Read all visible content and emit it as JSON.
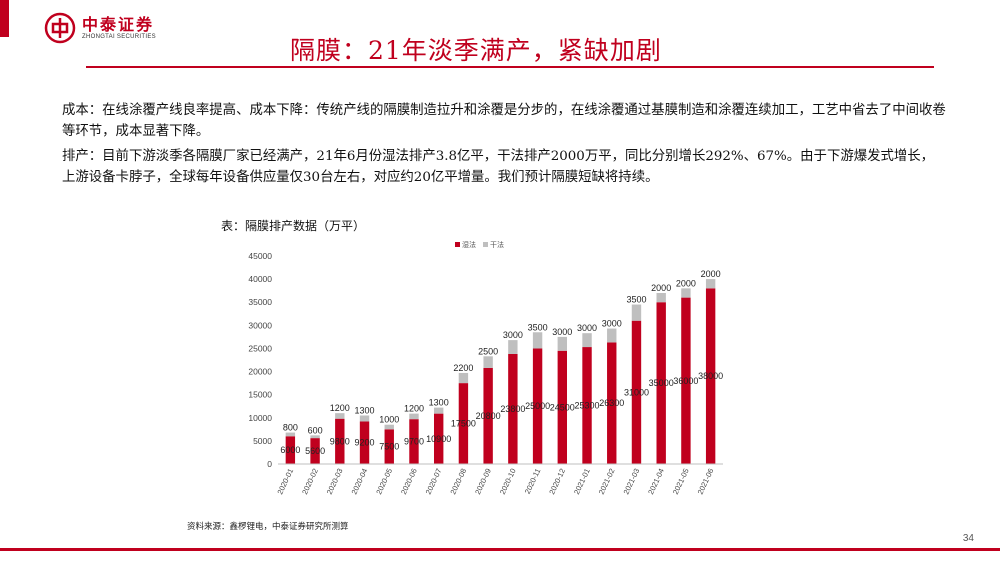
{
  "header": {
    "logo_cn": "中泰证券",
    "logo_en": "ZHONGTAI SECURITIES",
    "title": "隔膜：21年淡季满产，紧缺加剧"
  },
  "body": {
    "p1": "成本：在线涂覆产线良率提高、成本下降：传统产线的隔膜制造拉升和涂覆是分步的，在线涂覆通过基膜制造和涂覆连续加工，工艺中省去了中间收卷等环节，成本显著下降。",
    "p2": "排产：目前下游淡季各隔膜厂家已经满产，21年6月份湿法排产3.8亿平，干法排产2000万平，同比分别增长292%、67%。由于下游爆发式增长，上游设备卡脖子，全球每年设备供应量仅30台左右，对应约20亿平增量。我们预计隔膜短缺将持续。"
  },
  "chart_caption": "表：隔膜排产数据（万平）",
  "source": "资料来源：鑫椤锂电，中泰证券研究所测算",
  "page_number": "34",
  "colors": {
    "brand_red": "#c0001e",
    "wet": "#c0001e",
    "dry": "#bfbfbf"
  },
  "chart_data": {
    "type": "bar",
    "stacked": true,
    "categories": [
      "2020-01",
      "2020-02",
      "2020-03",
      "2020-04",
      "2020-05",
      "2020-06",
      "2020-07",
      "2020-08",
      "2020-09",
      "2020-10",
      "2020-11",
      "2020-12",
      "2021-01",
      "2021-02",
      "2021-03",
      "2021-04",
      "2021-05",
      "2021-06"
    ],
    "series": [
      {
        "name": "湿法",
        "values": [
          6000,
          5600,
          9800,
          9200,
          7500,
          9700,
          10900,
          17500,
          20800,
          23800,
          25000,
          24500,
          25300,
          26300,
          31000,
          35000,
          36000,
          38000
        ]
      },
      {
        "name": "干法",
        "values": [
          800,
          600,
          1200,
          1300,
          1000,
          1200,
          1300,
          2200,
          2500,
          3000,
          3500,
          3000,
          3000,
          3000,
          3500,
          2000,
          2000,
          2000
        ]
      }
    ],
    "data_labels": {
      "wet": [
        "6000",
        "5600",
        "9800",
        "9200",
        "7500",
        "9700",
        "10900",
        "17500",
        "20800",
        "23800",
        "25000",
        "24500",
        "25300",
        "26300",
        "31000",
        "35000",
        "36000",
        "38000"
      ],
      "dry": [
        "800",
        "600",
        "1200",
        "1300",
        "1000",
        "1200",
        "1300",
        "2200",
        "2500",
        "3000",
        "3500",
        "3000",
        "3000",
        "3000",
        "3500",
        "2000",
        "2000",
        "2000"
      ]
    },
    "y_ticks": [
      "0",
      "5000",
      "10000",
      "15000",
      "20000",
      "25000",
      "30000",
      "35000",
      "40000",
      "45000"
    ],
    "ylim": [
      0,
      45000
    ],
    "legend_position": "top",
    "grid": false
  }
}
